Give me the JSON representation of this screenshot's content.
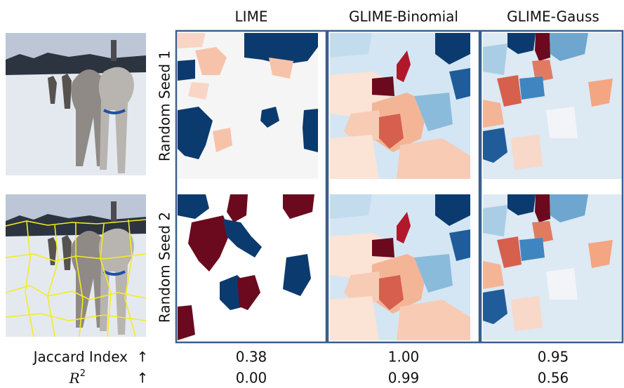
{
  "columns": [
    "LIME",
    "GLIME-Binomial",
    "GLIME-Gauss"
  ],
  "rows": [
    "Random Seed 1",
    "Random Seed 2"
  ],
  "metrics": [
    {
      "label": "Jaccard Index",
      "arrow": "↑",
      "values": [
        "0.38",
        "1.00",
        "0.95"
      ]
    },
    {
      "label": "R",
      "sup": "2",
      "arrow": "↑",
      "values": [
        "0.00",
        "0.99",
        "0.56"
      ]
    }
  ]
}
